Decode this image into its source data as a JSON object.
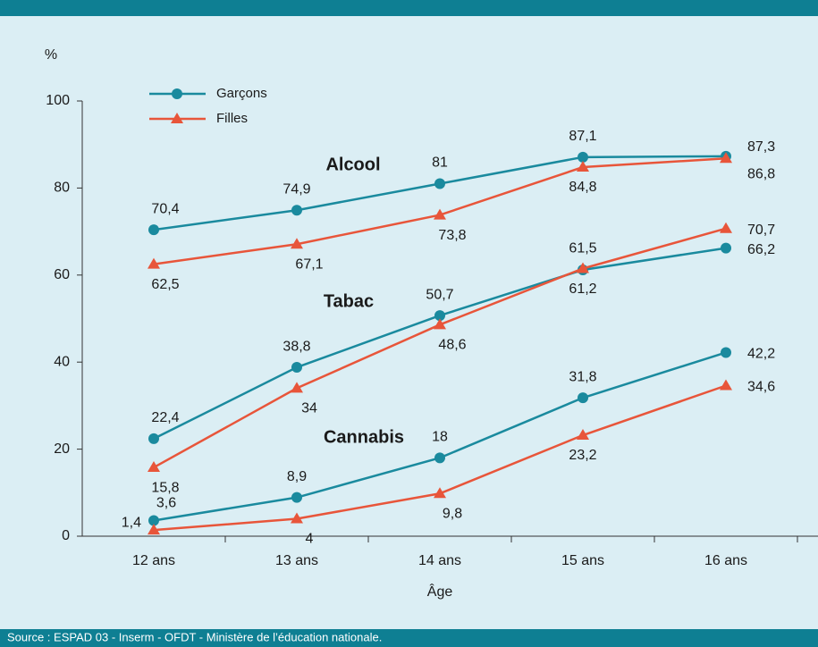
{
  "chart_data": {
    "type": "line",
    "y_label": "%",
    "x_label": "Âge",
    "source": "Source : ESPAD 03 - Inserm - OFDT - Ministère de l’éducation nationale.",
    "categories": [
      "12 ans",
      "13 ans",
      "14 ans",
      "15 ans",
      "16 ans"
    ],
    "ylim": [
      0,
      100
    ],
    "yticks": [
      0,
      20,
      40,
      60,
      80,
      100
    ],
    "legend": [
      {
        "name": "Garçons",
        "color": "#1a8a9e",
        "marker": "circle"
      },
      {
        "name": "Filles",
        "color": "#e8553a",
        "marker": "triangle"
      }
    ],
    "groups": [
      {
        "label": "Alcool",
        "values": [
          [
            70.4,
            74.9,
            81,
            87.1,
            87.3
          ],
          [
            62.5,
            67.1,
            73.8,
            84.8,
            86.8
          ]
        ],
        "value_labels": [
          [
            "70,4",
            "74,9",
            "81",
            "87,1",
            "87,3"
          ],
          [
            "62,5",
            "67,1",
            "73,8",
            "84,8",
            "86,8"
          ]
        ]
      },
      {
        "label": "Tabac",
        "values": [
          [
            22.4,
            38.8,
            50.7,
            61.2,
            66.2
          ],
          [
            15.8,
            34,
            48.6,
            61.5,
            70.7
          ]
        ],
        "value_labels": [
          [
            "22,4",
            "38,8",
            "50,7",
            "61,2",
            "66,2"
          ],
          [
            "15,8",
            "34",
            "48,6",
            "61,5",
            "70,7"
          ]
        ]
      },
      {
        "label": "Cannabis",
        "values": [
          [
            3.6,
            8.9,
            18,
            31.8,
            42.2
          ],
          [
            1.4,
            4,
            9.8,
            23.2,
            34.6
          ]
        ],
        "value_labels": [
          [
            "3,6",
            "8,9",
            "18",
            "31,8",
            "42,2"
          ],
          [
            "1,4",
            "4",
            "9,8",
            "23,2",
            "34,6"
          ]
        ]
      }
    ]
  }
}
